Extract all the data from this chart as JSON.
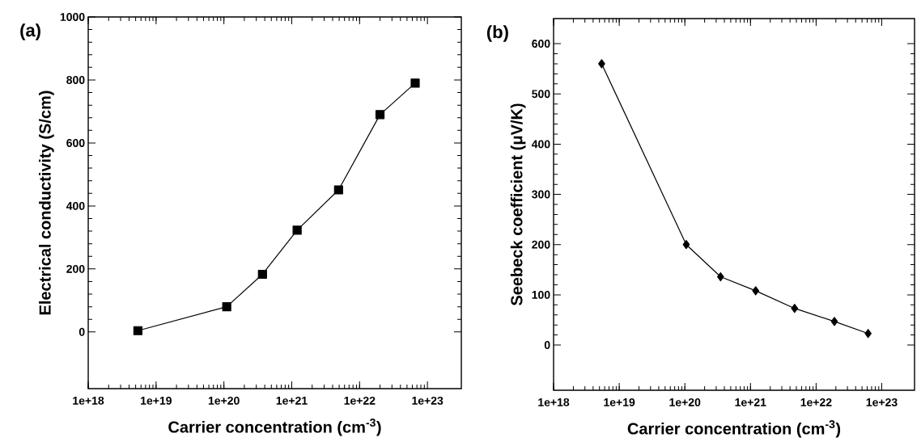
{
  "chart_data": [
    {
      "type": "line",
      "xlabel": "Carrier concentration (cm$^{-3}$)",
      "ylabel": "Electrical conductivity (S/cm)",
      "annotations": [
        "(a)"
      ],
      "log": "x",
      "marker": "square",
      "line_style": "solid",
      "x": [
        5.4e+18,
        1.1e+20,
        3.7e+20,
        1.2e+21,
        4.9e+21,
        2e+22,
        6.6e+22
      ],
      "values": [
        4,
        80,
        183,
        323,
        451,
        690,
        790
      ],
      "color": "#000000",
      "xlim": [
        1e+18,
        3.16e+23
      ],
      "ylim": [
        -180,
        1000
      ],
      "xticks": [
        {
          "value": 1e+18,
          "label": "1e+18"
        },
        {
          "value": 1e+19,
          "label": "1e+19"
        },
        {
          "value": 1e+20,
          "label": "1e+20"
        },
        {
          "value": 1e+21,
          "label": "1e+21"
        },
        {
          "value": 1e+22,
          "label": "1e+22"
        },
        {
          "value": 1e+23,
          "label": "1e+23"
        }
      ],
      "yticks": [
        0,
        200,
        400,
        600,
        800,
        1000
      ]
    },
    {
      "type": "line",
      "xlabel": "Carrier concentration (cm$^{-3}$)",
      "ylabel": "Seebeck coefficient (μV/K)",
      "annotations": [
        "(b)"
      ],
      "log": "x",
      "marker": "diamond",
      "line_style": "solid",
      "x": [
        5.4e+18,
        1.05e+20,
        3.5e+20,
        1.2e+21,
        4.7e+21,
        1.9e+22,
        6.2e+22
      ],
      "values": [
        560,
        200,
        136,
        108,
        73,
        47,
        23
      ],
      "color": "#000000",
      "xlim": [
        1e+18,
        3.16e+23
      ],
      "ylim": [
        -90,
        650
      ],
      "xticks": [
        {
          "value": 1e+18,
          "label": "1e+18"
        },
        {
          "value": 1e+19,
          "label": "1e+19"
        },
        {
          "value": 1e+20,
          "label": "1e+20"
        },
        {
          "value": 1e+21,
          "label": "1e+21"
        },
        {
          "value": 1e+22,
          "label": "1e+22"
        },
        {
          "value": 1e+23,
          "label": "1e+23"
        }
      ],
      "yticks": [
        0,
        100,
        200,
        300,
        400,
        500,
        600
      ]
    }
  ]
}
